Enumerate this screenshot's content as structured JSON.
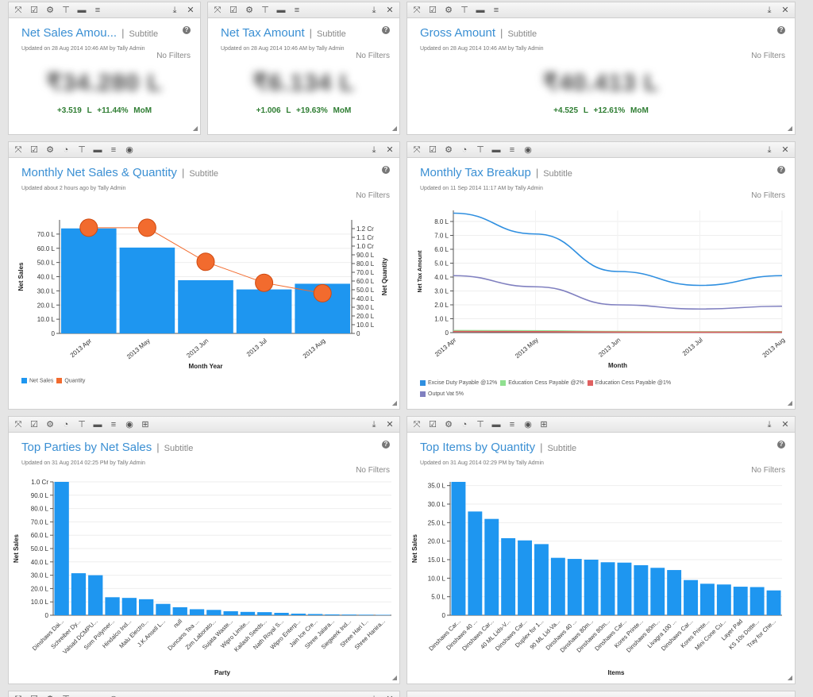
{
  "toolbar": {
    "labels": [
      "⤧",
      "☑",
      "⚙",
      "◔",
      "⊤",
      "▬",
      "≡",
      "◉",
      "⊞"
    ],
    "download": "⤓",
    "close": "✕"
  },
  "kpis": [
    {
      "title": "Net Sales Amou...",
      "subtitle": "Subtitle",
      "updated": "Updated on 28 Aug 2014 10:46 AM by Tally Admin",
      "filters": "No Filters",
      "value": "₹34.280 L",
      "delta": "+3.519 L   +11.44%   MoM"
    },
    {
      "title": "Net Tax Amount",
      "subtitle": "Subtitle",
      "updated": "Updated on 28 Aug 2014 10:46 AM by Tally Admin",
      "filters": "No Filters",
      "value": "₹6.134 L",
      "delta": "+1.006 L   +19.63%   MoM"
    },
    {
      "title": "Gross Amount",
      "subtitle": "Subtitle",
      "updated": "Updated on 28 Aug 2014 10:46 AM by Tally Admin",
      "filters": "No Filters",
      "value": "₹40.413 L",
      "delta": "+4.525 L   +12.61%   MoM"
    }
  ],
  "charts": {
    "monthly_sales": {
      "title": "Monthly Net Sales & Quantity",
      "subtitle": "Subtitle",
      "updated": "Updated about 2 hours ago by Tally Admin",
      "filters": "No Filters"
    },
    "monthly_tax": {
      "title": "Monthly Tax Breakup",
      "subtitle": "Subtitle",
      "updated": "Updated on 11 Sep 2014 11:17 AM by Tally Admin",
      "filters": "No Filters"
    },
    "top_parties": {
      "title": "Top Parties by Net Sales",
      "subtitle": "Subtitle",
      "updated": "Updated on 31 Aug 2014 02:25 PM by Tally Admin",
      "filters": "No Filters"
    },
    "top_items": {
      "title": "Top Items by Quantity",
      "subtitle": "Subtitle",
      "updated": "Updated on 31 Aug 2014 02:29 PM by Tally Admin",
      "filters": "No Filters"
    }
  },
  "colors": {
    "bar": "#1e96f0",
    "quantity": "#f26b2e",
    "line_blue": "#2f8fe0",
    "line_purple": "#8080c0",
    "line_green": "#90e090",
    "line_red": "#e06060",
    "kpi_green": "#2e7d32",
    "title": "#3a8fd3"
  },
  "chart_data": [
    {
      "id": "monthly_sales",
      "type": "bar",
      "categories": [
        "2013 Apr",
        "2013 May",
        "2013 Jun",
        "2013 Jul",
        "2013 Aug"
      ],
      "series": [
        {
          "name": "Net Sales",
          "values": [
            74.0,
            60.5,
            37.5,
            31.0,
            35.0
          ],
          "axis": "left"
        },
        {
          "name": "Quantity",
          "values": [
            1.21,
            1.21,
            0.82,
            0.58,
            0.46
          ],
          "axis": "right",
          "style": "line-markers"
        }
      ],
      "xlabel": "Month Year",
      "ylabel": "Net Sales",
      "y2label": "Net Quantity",
      "ylim": [
        0,
        80
      ],
      "yticks": [
        "0",
        "10.0 L",
        "20.0 L",
        "30.0 L",
        "40.0 L",
        "50.0 L",
        "60.0 L",
        "70.0 L"
      ],
      "y2lim": [
        0,
        1.3
      ],
      "y2ticks": [
        "0",
        "10.0 L",
        "20.0 L",
        "30.0 L",
        "40.0 L",
        "50.0 L",
        "60.0 L",
        "70.0 L",
        "80.0 L",
        "90.0 L",
        "1.0 Cr",
        "1.1 Cr",
        "1.2 Cr"
      ],
      "legend": [
        "Net Sales",
        "Quantity"
      ]
    },
    {
      "id": "monthly_tax",
      "type": "line",
      "categories": [
        "2013 Apr",
        "2013 May",
        "2013 Jun",
        "2013 Jul",
        "2013 Aug"
      ],
      "series": [
        {
          "name": "Excise Duty Payable @12%",
          "values": [
            8.6,
            7.1,
            4.4,
            3.4,
            4.1
          ]
        },
        {
          "name": "Education Cess Payable @2%",
          "values": [
            0.15,
            0.13,
            0.08,
            0.06,
            0.07
          ]
        },
        {
          "name": "Education Cess Payable @1%",
          "values": [
            0.08,
            0.07,
            0.04,
            0.03,
            0.04
          ]
        },
        {
          "name": "Output Vat 5%",
          "values": [
            4.1,
            3.3,
            2.0,
            1.7,
            1.9
          ]
        }
      ],
      "xlabel": "Month",
      "ylabel": "Net Tax Amount",
      "ylim": [
        0,
        8.8
      ],
      "yticks": [
        "0",
        "1.0 L",
        "2.0 L",
        "3.0 L",
        "4.0 L",
        "5.0 L",
        "6.0 L",
        "7.0 L",
        "8.0 L"
      ],
      "legend": [
        "Excise Duty Payable @12%",
        "Education Cess Payable @2%",
        "Education Cess Payable @1%",
        "Output Vat 5%"
      ]
    },
    {
      "id": "top_parties",
      "type": "bar",
      "categories": [
        "Dinshaws Dai...",
        "Schreiber Dy...",
        "Valsad DCMPU...",
        "Som Polymer...",
        "Hindalco Ind...",
        "Malu Electro...",
        "J.K.Ansell L...",
        "null",
        "Duncans Tea ...",
        "Zim Laborato...",
        "Sujata Waste...",
        "Wipro Limite...",
        "Kailash Seeds...",
        "Nath Royal S...",
        "Wipro Enterp...",
        "Jain Ice Cre...",
        "Shree Jalara...",
        "Siegwerk Ind...",
        "Shree Hari I...",
        "Shree Hanira..."
      ],
      "values": [
        101,
        31.5,
        30,
        13.5,
        13,
        12,
        8.5,
        6,
        4.5,
        4,
        3,
        2.5,
        2.3,
        1.8,
        1.2,
        0.9,
        0.6,
        0.5,
        0.4,
        0.3
      ],
      "xlabel": "Party",
      "ylabel": "Net Sales",
      "ylim": [
        0,
        100
      ],
      "yticks": [
        "0",
        "10.0 L",
        "20.0 L",
        "30.0 L",
        "40.0 L",
        "50.0 L",
        "60.0 L",
        "70.0 L",
        "80.0 L",
        "90.0 L",
        "1.0 Cr"
      ]
    },
    {
      "id": "top_items",
      "type": "bar",
      "categories": [
        "Dinshaws Car...",
        "Dinshaws 40 ...",
        "Dinshaws Car...",
        "40 ML Lids-V...",
        "Dinshaws Car...",
        "Duplex for 1...",
        "90 ML Lid-Va...",
        "Dinshaws 40 ...",
        "Dinshaws 80m...",
        "Dinshaws 80m...",
        "Dinshaws Car...",
        "Kores Printe...",
        "Dinshaws 80m...",
        "Livagra 100 ...",
        "Dinshaws Car...",
        "Kores Printe...",
        "Mini Cone Cu...",
        "Layer Pad",
        "KS 10s Dotte...",
        "Tray for Che..."
      ],
      "values": [
        36.2,
        28,
        26,
        20.8,
        20.2,
        19.2,
        15.5,
        15.2,
        15,
        14.3,
        14.2,
        13.5,
        12.8,
        12.2,
        9.5,
        8.5,
        8.3,
        7.7,
        7.6,
        6.7
      ],
      "xlabel": "Items",
      "ylabel": "Net Sales",
      "ylim": [
        0,
        36
      ],
      "yticks": [
        "0",
        "5.0 L",
        "10.0 L",
        "15.0 L",
        "20.0 L",
        "25.0 L",
        "30.0 L",
        "35.0 L"
      ]
    }
  ]
}
